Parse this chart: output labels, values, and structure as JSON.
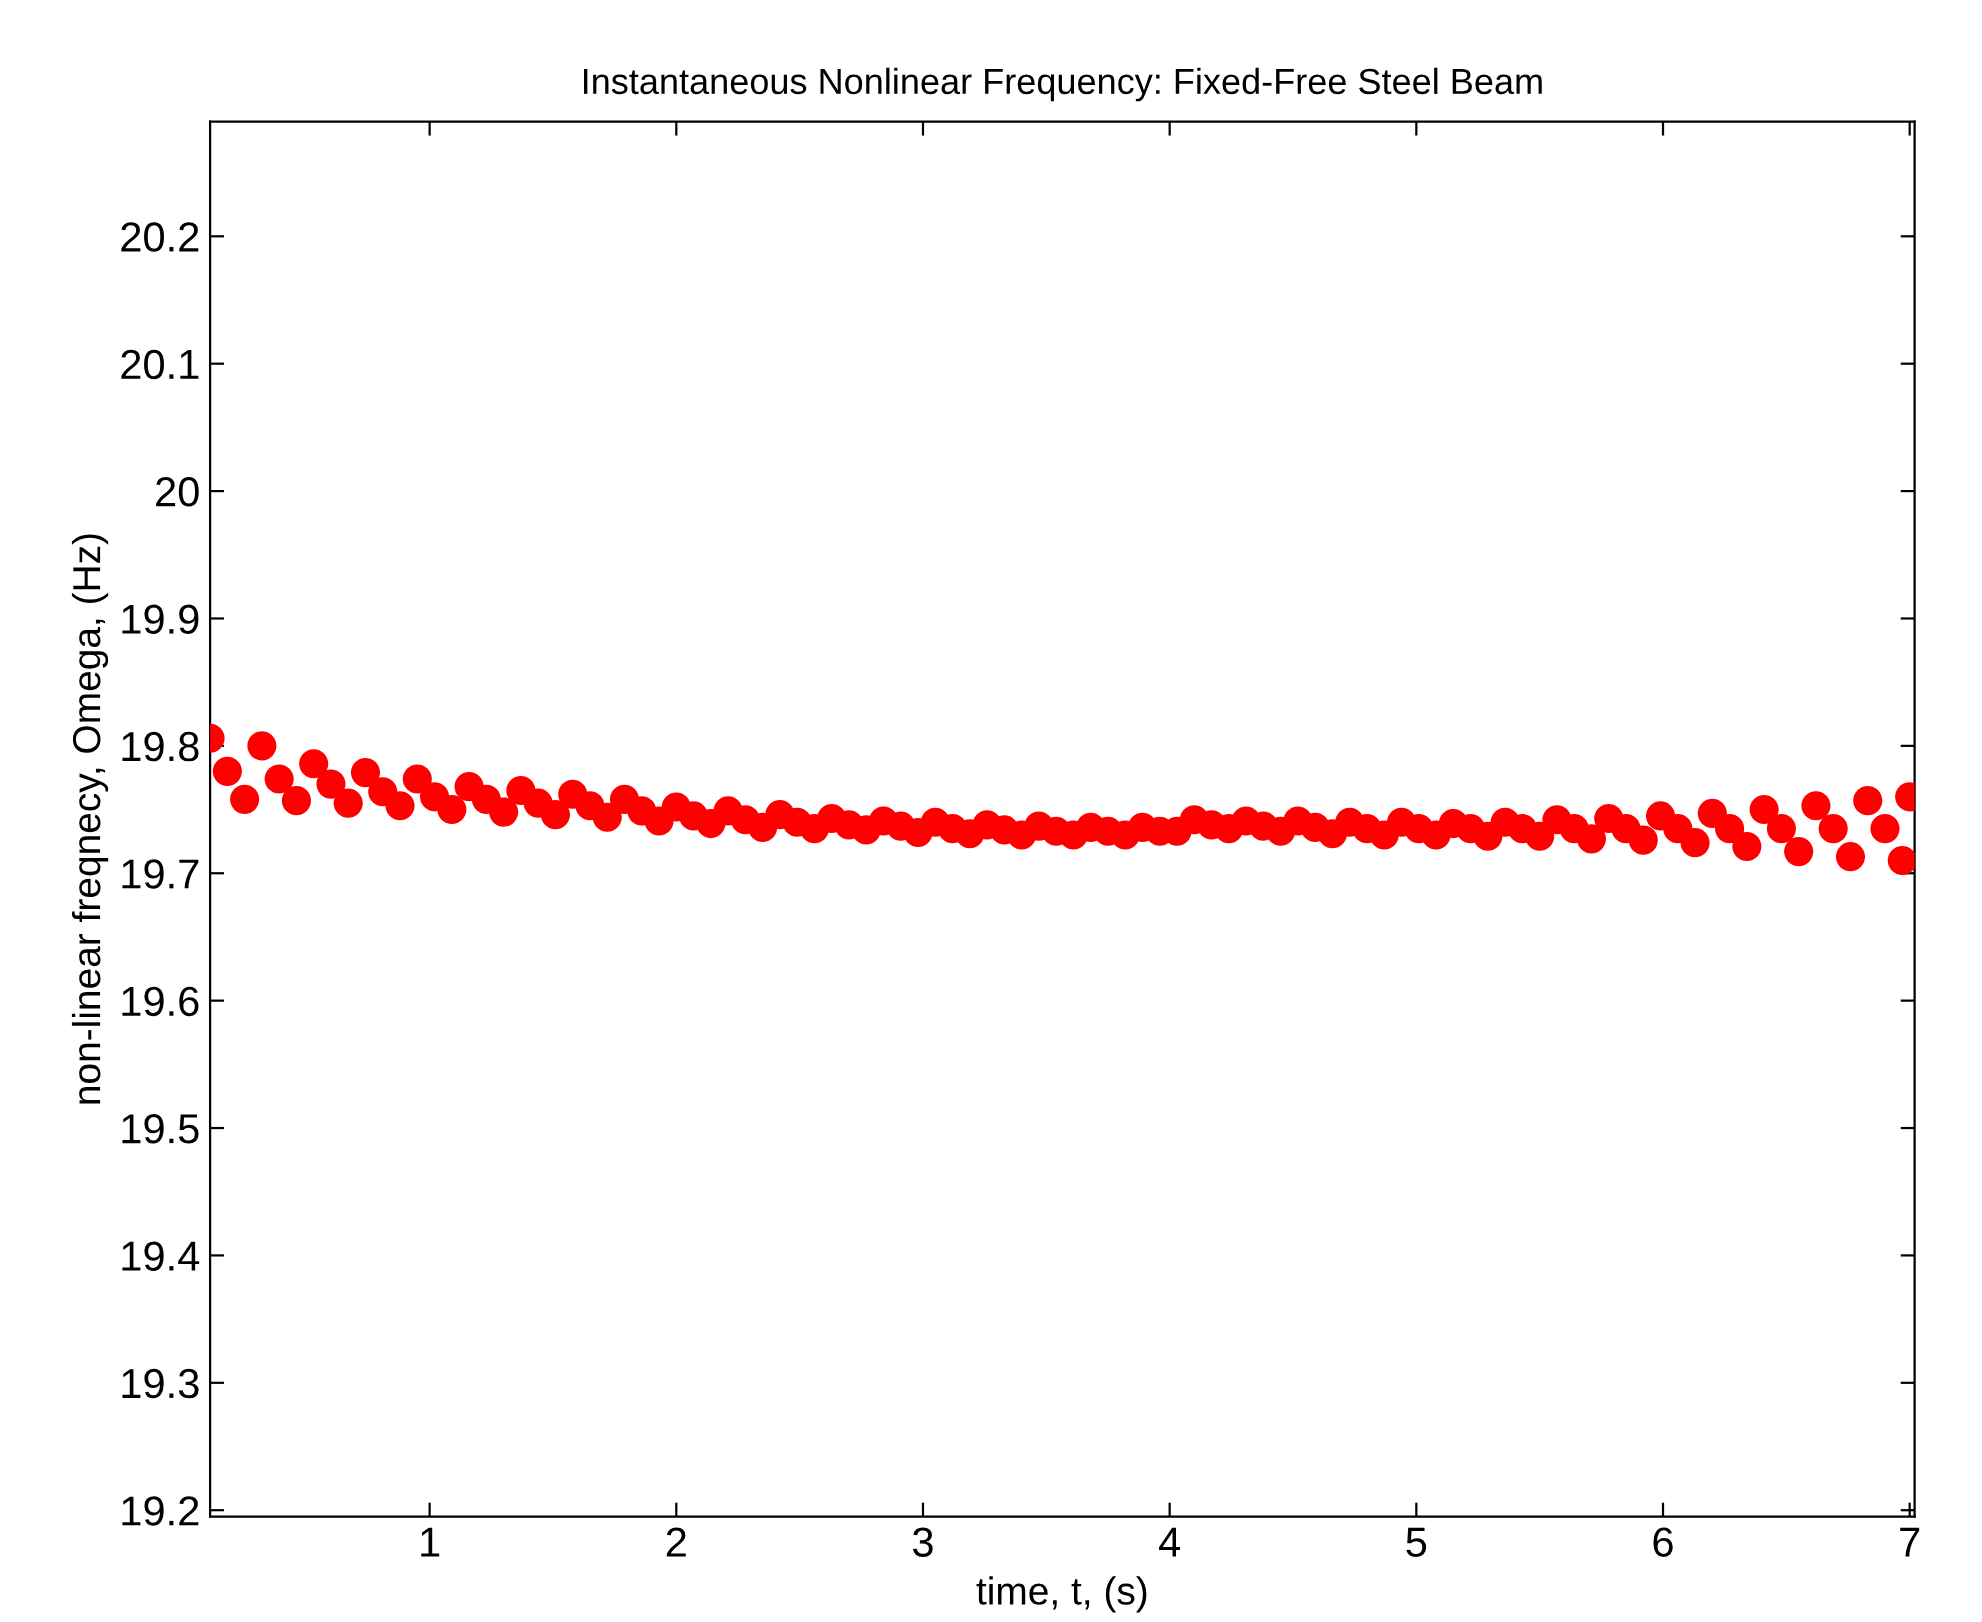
{
  "chart_data": {
    "type": "scatter",
    "title": "Instantaneous Nonlinear Frequency: Fixed-Free Steel Beam",
    "xlabel": "time, t, (s)",
    "ylabel": "non-linear freqnecy, Omega, (Hz)",
    "xlim": [
      0.11,
      7.02
    ],
    "xticks": [
      1,
      2,
      3,
      4,
      5,
      6,
      7
    ],
    "ylim": [
      19.195,
      20.29
    ],
    "yticks": [
      19.2,
      19.3,
      19.4,
      19.5,
      19.6,
      19.7,
      19.8,
      19.9,
      20,
      20.1,
      20.2
    ],
    "grid": false,
    "marker": "circle",
    "series": [
      {
        "color": "#ff0000",
        "x": [
          0.11,
          0.18,
          0.25,
          0.32,
          0.39,
          0.46,
          0.53,
          0.6,
          0.67,
          0.74,
          0.81,
          0.88,
          0.95,
          1.02,
          1.09,
          1.16,
          1.23,
          1.3,
          1.37,
          1.44,
          1.51,
          1.58,
          1.65,
          1.72,
          1.79,
          1.86,
          1.93,
          2.0,
          2.07,
          2.14,
          2.21,
          2.28,
          2.35,
          2.42,
          2.49,
          2.56,
          2.63,
          2.7,
          2.77,
          2.84,
          2.91,
          2.98,
          3.05,
          3.12,
          3.19,
          3.26,
          3.33,
          3.4,
          3.47,
          3.54,
          3.61,
          3.68,
          3.75,
          3.82,
          3.89,
          3.96,
          4.03,
          4.1,
          4.17,
          4.24,
          4.31,
          4.38,
          4.45,
          4.52,
          4.59,
          4.66,
          4.73,
          4.8,
          4.87,
          4.94,
          5.01,
          5.08,
          5.15,
          5.22,
          5.29,
          5.36,
          5.43,
          5.5,
          5.57,
          5.64,
          5.71,
          5.78,
          5.85,
          5.92,
          5.99,
          6.06,
          6.13,
          6.2,
          6.27,
          6.34,
          6.41,
          6.48,
          6.55,
          6.62,
          6.69,
          6.76,
          6.83,
          6.9,
          6.97,
          7.0
        ],
        "values": [
          19.806,
          19.78,
          19.758,
          19.8,
          19.774,
          19.757,
          19.786,
          19.77,
          19.755,
          19.779,
          19.764,
          19.753,
          19.774,
          19.76,
          19.75,
          19.768,
          19.758,
          19.748,
          19.765,
          19.755,
          19.746,
          19.762,
          19.753,
          19.744,
          19.758,
          19.749,
          19.741,
          19.752,
          19.745,
          19.739,
          19.749,
          19.742,
          19.736,
          19.746,
          19.74,
          19.735,
          19.743,
          19.738,
          19.734,
          19.741,
          19.737,
          19.732,
          19.74,
          19.735,
          19.731,
          19.738,
          19.734,
          19.73,
          19.737,
          19.733,
          19.73,
          19.736,
          19.733,
          19.73,
          19.736,
          19.733,
          19.733,
          19.742,
          19.738,
          19.735,
          19.741,
          19.737,
          19.733,
          19.741,
          19.736,
          19.731,
          19.74,
          19.735,
          19.73,
          19.74,
          19.735,
          19.73,
          19.739,
          19.735,
          19.729,
          19.74,
          19.735,
          19.729,
          19.742,
          19.735,
          19.727,
          19.743,
          19.735,
          19.726,
          19.745,
          19.735,
          19.724,
          19.747,
          19.735,
          19.721,
          19.75,
          19.735,
          19.717,
          19.753,
          19.735,
          19.713,
          19.757,
          19.735,
          19.71,
          19.76
        ]
      }
    ]
  }
}
